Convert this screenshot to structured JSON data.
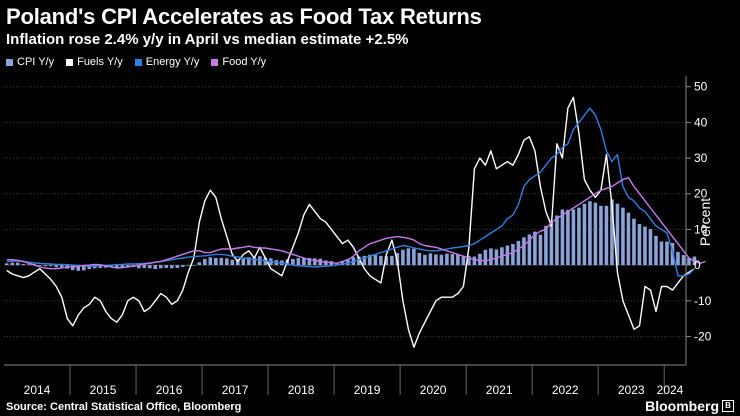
{
  "title": "Poland's CPI Accelerates as Food Tax Returns",
  "subtitle": "Inflation rose 2.4% y/y in April vs median estimate +2.5%",
  "legend": [
    {
      "label": "CPI Y/y",
      "color": "#8aa3d8"
    },
    {
      "label": "Fuels Y/y",
      "color": "#ffffff"
    },
    {
      "label": "Energy Y/y",
      "color": "#2f7fe0"
    },
    {
      "label": "Food Y/y",
      "color": "#c37be8"
    }
  ],
  "source": "Source: Central Statistical Office, Bloomberg",
  "brand": "Bloomberg",
  "brand_mark": "B",
  "chart_data": {
    "type": "bar+line",
    "title": "Poland's CPI Accelerates as Food Tax Returns",
    "ylabel": "Percent",
    "ylim": [
      -28,
      53
    ],
    "yticks": [
      -20,
      -10,
      0,
      10,
      20,
      30,
      40,
      50
    ],
    "xticks": [
      "2014",
      "2015",
      "2016",
      "2017",
      "2018",
      "2019",
      "2020",
      "2021",
      "2022",
      "2023",
      "2024"
    ],
    "x_start": "2014-01",
    "x_end": "2024-04",
    "series": [
      {
        "name": "CPI Y/y",
        "kind": "bar",
        "color": "#8aa3d8",
        "values": [
          0.5,
          0.7,
          0.7,
          0.3,
          0.2,
          0.3,
          -0.2,
          -0.3,
          -0.3,
          -0.6,
          -0.6,
          -1.0,
          -1.4,
          -1.6,
          -1.5,
          -1.1,
          -0.9,
          -0.8,
          -0.7,
          -0.6,
          -0.8,
          -0.7,
          -0.6,
          -0.5,
          -0.9,
          -0.8,
          -0.9,
          -1.1,
          -0.9,
          -0.8,
          -0.9,
          -0.8,
          -0.5,
          -0.2,
          0.0,
          0.8,
          1.7,
          2.2,
          2.0,
          2.0,
          1.9,
          1.5,
          1.7,
          1.8,
          2.2,
          2.1,
          2.5,
          2.1,
          1.9,
          1.4,
          1.3,
          1.6,
          1.7,
          2.0,
          2.0,
          2.0,
          1.9,
          1.8,
          1.3,
          1.1,
          0.7,
          1.2,
          1.7,
          2.2,
          2.4,
          2.6,
          2.9,
          2.9,
          2.6,
          2.5,
          2.6,
          3.4,
          4.3,
          4.7,
          4.6,
          3.4,
          2.9,
          3.3,
          3.0,
          2.9,
          3.2,
          3.1,
          3.0,
          2.4,
          2.6,
          2.4,
          3.2,
          4.3,
          4.7,
          4.4,
          5.0,
          5.5,
          5.9,
          6.8,
          7.8,
          8.6,
          9.4,
          8.5,
          11.0,
          12.4,
          13.9,
          15.6,
          15.5,
          15.6,
          16.1,
          17.2,
          17.9,
          17.5,
          16.6,
          16.6,
          18.4,
          17.2,
          16.1,
          14.7,
          13.0,
          11.5,
          10.8,
          10.1,
          8.2,
          6.6,
          6.6,
          6.2,
          3.7,
          2.8,
          2.0,
          2.4
        ]
      },
      {
        "name": "Fuels Y/y",
        "kind": "line",
        "color": "#ffffff",
        "values": [
          -1.5,
          -2.5,
          -3.0,
          -3.5,
          -3.0,
          -2.0,
          -1.0,
          -2.5,
          -4.0,
          -6.0,
          -9.0,
          -15.0,
          -17.0,
          -14.0,
          -12.0,
          -11.0,
          -9.0,
          -10.0,
          -13.0,
          -15.0,
          -16.0,
          -14.0,
          -10.0,
          -9.0,
          -10.0,
          -13.0,
          -12.0,
          -10.0,
          -8.0,
          -9.0,
          -11.0,
          -10.0,
          -7.0,
          -2.0,
          2.0,
          12.0,
          18.0,
          21.0,
          19.0,
          13.0,
          8.0,
          3.0,
          1.0,
          3.0,
          4.0,
          2.0,
          5.0,
          2.0,
          -1.0,
          -2.0,
          -3.0,
          1.0,
          5.0,
          9.0,
          14.0,
          17.0,
          15.0,
          13.0,
          12.0,
          10.0,
          8.0,
          6.0,
          7.0,
          5.0,
          2.0,
          -1.0,
          -3.0,
          -4.0,
          -5.0,
          3.0,
          7.0,
          1.0,
          -10.0,
          -18.0,
          -23.0,
          -19.0,
          -16.0,
          -13.0,
          -10.0,
          -9.0,
          -9.0,
          -9.0,
          -8.0,
          -6.0,
          5.0,
          27.0,
          30.0,
          28.0,
          32.0,
          27.0,
          28.0,
          29.0,
          28.0,
          31.0,
          35.0,
          36.0,
          32.0,
          22.0,
          15.0,
          11.0,
          34.0,
          30.0,
          44.0,
          47.0,
          37.0,
          24.0,
          21.0,
          19.0,
          21.0,
          31.0,
          17.0,
          -2.0,
          -10.0,
          -14.0,
          -18.0,
          -17.0,
          -6.0,
          -7.0,
          -13.0,
          -6.0,
          -6.0,
          -7.0,
          -5.0,
          -3.0,
          -2.0,
          -1.0
        ]
      },
      {
        "name": "Energy Y/y",
        "kind": "line",
        "color": "#2f7fe0",
        "values": [
          1.0,
          1.1,
          1.2,
          1.0,
          0.8,
          0.6,
          0.5,
          0.4,
          0.3,
          0.2,
          0.2,
          0.1,
          0.0,
          -0.1,
          -0.2,
          -0.3,
          -0.3,
          -0.2,
          -0.1,
          0.0,
          0.1,
          0.2,
          0.3,
          0.3,
          0.4,
          0.5,
          0.6,
          0.8,
          1.0,
          1.2,
          1.5,
          1.8,
          2.0,
          2.2,
          2.4,
          2.5,
          2.6,
          2.8,
          3.0,
          3.0,
          2.8,
          2.5,
          2.3,
          2.0,
          1.8,
          1.6,
          1.4,
          1.2,
          1.0,
          0.8,
          0.5,
          0.3,
          0.0,
          -0.2,
          -0.3,
          -0.4,
          -0.5,
          -0.4,
          -0.3,
          -0.2,
          0.0,
          0.3,
          0.6,
          1.0,
          1.5,
          2.0,
          2.5,
          3.0,
          3.5,
          4.0,
          4.5,
          5.0,
          5.5,
          5.2,
          4.8,
          4.5,
          4.2,
          4.0,
          4.0,
          4.2,
          4.5,
          4.8,
          5.0,
          5.2,
          5.5,
          6.0,
          7.0,
          8.0,
          9.0,
          10.0,
          11.0,
          13.0,
          14.0,
          17.0,
          22.0,
          24.0,
          25.0,
          26.0,
          28.0,
          30.0,
          31.0,
          33.0,
          34.0,
          38.0,
          40.0,
          42.0,
          44.0,
          42.0,
          38.0,
          32.0,
          29.0,
          31.0,
          22.0,
          19.0,
          18.0,
          16.0,
          15.0,
          13.0,
          11.0,
          10.0,
          9.0,
          4.0,
          -3.0,
          -3.0,
          -2.5,
          -1.0
        ]
      },
      {
        "name": "Food Y/y",
        "kind": "line",
        "color": "#c37be8",
        "values": [
          1.5,
          1.5,
          1.3,
          1.0,
          0.5,
          0.0,
          -0.5,
          -0.8,
          -1.0,
          -1.0,
          -0.8,
          -0.5,
          -0.5,
          -0.3,
          -0.1,
          0.0,
          0.2,
          0.1,
          -0.2,
          -0.5,
          -0.8,
          -0.7,
          -0.5,
          -0.3,
          0.0,
          0.3,
          0.5,
          0.8,
          1.0,
          1.5,
          2.0,
          2.5,
          3.0,
          3.5,
          4.0,
          4.0,
          3.5,
          3.5,
          4.0,
          4.5,
          4.5,
          4.5,
          4.8,
          5.0,
          5.3,
          5.0,
          4.8,
          4.8,
          4.5,
          4.3,
          4.0,
          3.5,
          3.0,
          2.5,
          2.0,
          1.5,
          1.3,
          1.0,
          0.8,
          0.7,
          0.5,
          1.0,
          1.5,
          2.5,
          4.0,
          5.0,
          6.0,
          6.5,
          7.0,
          7.5,
          7.8,
          8.0,
          7.8,
          7.5,
          7.0,
          6.0,
          5.5,
          5.2,
          5.0,
          4.5,
          4.0,
          3.5,
          3.0,
          2.5,
          2.0,
          1.5,
          1.3,
          1.2,
          1.5,
          2.0,
          2.5,
          3.0,
          3.5,
          4.5,
          5.5,
          7.0,
          8.5,
          9.5,
          10.0,
          12.0,
          13.0,
          14.0,
          15.0,
          16.0,
          17.0,
          18.0,
          19.0,
          20.0,
          21.0,
          21.5,
          22.0,
          23.0,
          24.0,
          24.5,
          22.0,
          20.0,
          18.0,
          16.0,
          14.0,
          12.0,
          10.0,
          8.0,
          6.0,
          4.0,
          2.0,
          1.0,
          0.5,
          1.0
        ]
      }
    ]
  }
}
